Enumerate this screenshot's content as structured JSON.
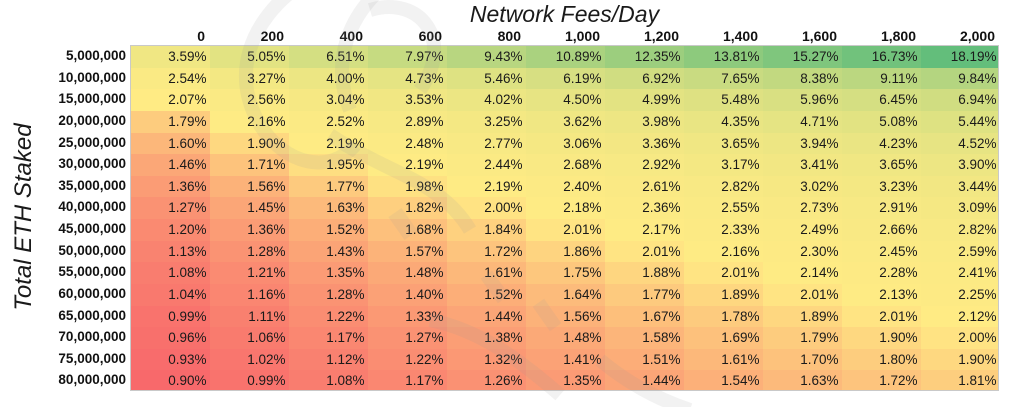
{
  "chart_data": {
    "type": "heatmap",
    "xlabel": "Network Fees/Day",
    "ylabel": "Total ETH Staked",
    "x": [
      "0",
      "200",
      "400",
      "600",
      "800",
      "1,000",
      "1,200",
      "1,400",
      "1,600",
      "1,800",
      "2,000"
    ],
    "y": [
      "5,000,000",
      "10,000,000",
      "15,000,000",
      "20,000,000",
      "25,000,000",
      "30,000,000",
      "35,000,000",
      "40,000,000",
      "45,000,000",
      "50,000,000",
      "55,000,000",
      "60,000,000",
      "65,000,000",
      "70,000,000",
      "75,000,000",
      "80,000,000"
    ],
    "values": [
      [
        3.59,
        5.05,
        6.51,
        7.97,
        9.43,
        10.89,
        12.35,
        13.81,
        15.27,
        16.73,
        18.19
      ],
      [
        2.54,
        3.27,
        4.0,
        4.73,
        5.46,
        6.19,
        6.92,
        7.65,
        8.38,
        9.11,
        9.84
      ],
      [
        2.07,
        2.56,
        3.04,
        3.53,
        4.02,
        4.5,
        4.99,
        5.48,
        5.96,
        6.45,
        6.94
      ],
      [
        1.79,
        2.16,
        2.52,
        2.89,
        3.25,
        3.62,
        3.98,
        4.35,
        4.71,
        5.08,
        5.44
      ],
      [
        1.6,
        1.9,
        2.19,
        2.48,
        2.77,
        3.06,
        3.36,
        3.65,
        3.94,
        4.23,
        4.52
      ],
      [
        1.46,
        1.71,
        1.95,
        2.19,
        2.44,
        2.68,
        2.92,
        3.17,
        3.41,
        3.65,
        3.9
      ],
      [
        1.36,
        1.56,
        1.77,
        1.98,
        2.19,
        2.4,
        2.61,
        2.82,
        3.02,
        3.23,
        3.44
      ],
      [
        1.27,
        1.45,
        1.63,
        1.82,
        2.0,
        2.18,
        2.36,
        2.55,
        2.73,
        2.91,
        3.09
      ],
      [
        1.2,
        1.36,
        1.52,
        1.68,
        1.84,
        2.01,
        2.17,
        2.33,
        2.49,
        2.66,
        2.82
      ],
      [
        1.13,
        1.28,
        1.43,
        1.57,
        1.72,
        1.86,
        2.01,
        2.16,
        2.3,
        2.45,
        2.59
      ],
      [
        1.08,
        1.21,
        1.35,
        1.48,
        1.61,
        1.75,
        1.88,
        2.01,
        2.14,
        2.28,
        2.41
      ],
      [
        1.04,
        1.16,
        1.28,
        1.4,
        1.52,
        1.64,
        1.77,
        1.89,
        2.01,
        2.13,
        2.25
      ],
      [
        0.99,
        1.11,
        1.22,
        1.33,
        1.44,
        1.56,
        1.67,
        1.78,
        1.89,
        2.01,
        2.12
      ],
      [
        0.96,
        1.06,
        1.17,
        1.27,
        1.38,
        1.48,
        1.58,
        1.69,
        1.79,
        1.9,
        2.0
      ],
      [
        0.93,
        1.02,
        1.12,
        1.22,
        1.32,
        1.41,
        1.51,
        1.61,
        1.7,
        1.8,
        1.9
      ],
      [
        0.9,
        0.99,
        1.08,
        1.17,
        1.26,
        1.35,
        1.44,
        1.54,
        1.63,
        1.72,
        1.81
      ]
    ],
    "value_format": "percent, 2 decimals",
    "color_scale": {
      "low": "#f8696b",
      "mid": "#ffeb84",
      "high": "#63be7b"
    },
    "legend": "none",
    "grid": false
  }
}
